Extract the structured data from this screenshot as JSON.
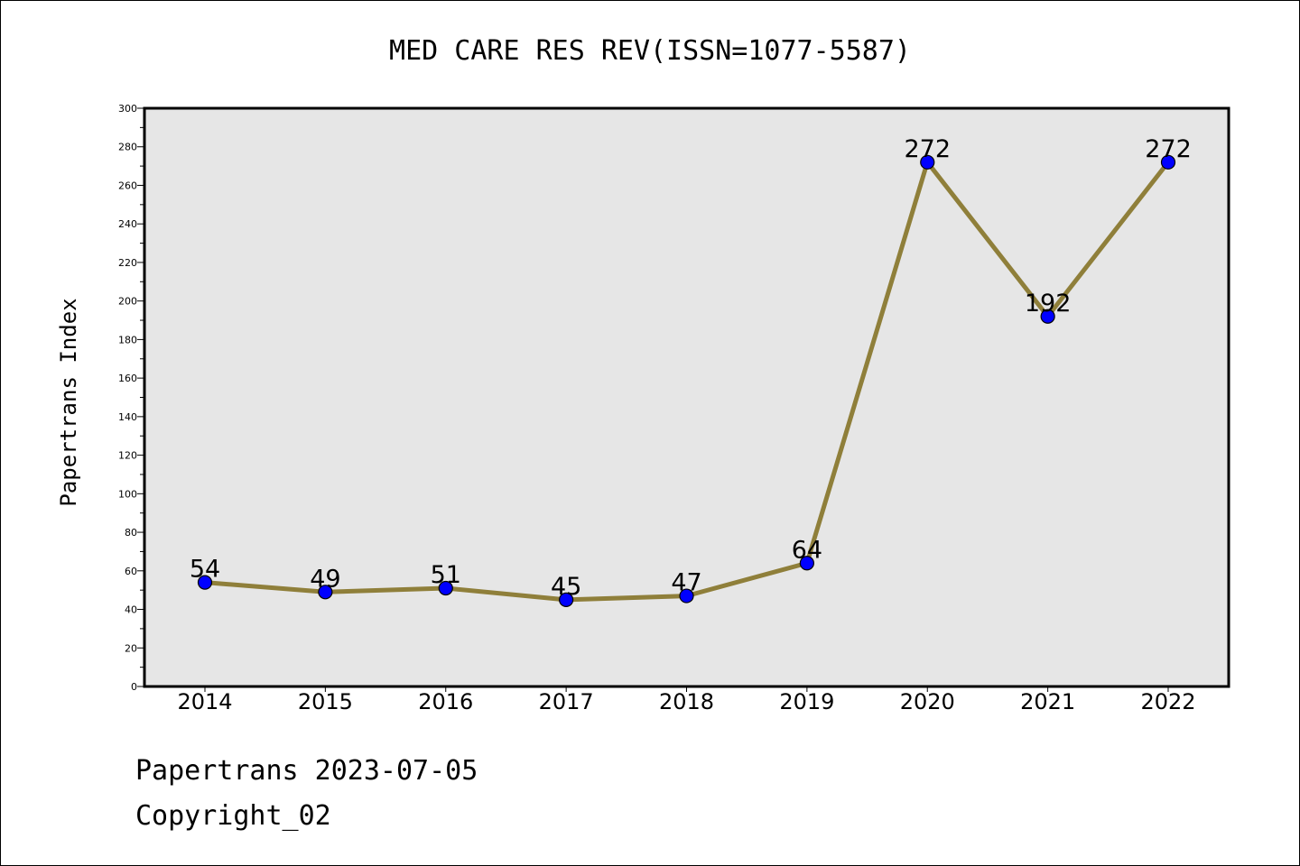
{
  "chart_data": {
    "type": "line",
    "title": "MED CARE RES REV(ISSN=1077-5587)",
    "ylabel": "Papertrans Index",
    "xlabel": "",
    "categories": [
      "2014",
      "2015",
      "2016",
      "2017",
      "2018",
      "2019",
      "2020",
      "2021",
      "2022"
    ],
    "series": [
      {
        "values": [
          54,
          49,
          51,
          45,
          47,
          64,
          272,
          192,
          272
        ]
      }
    ],
    "ylim": [
      0,
      300
    ],
    "yticks": [
      0,
      20,
      40,
      60,
      80,
      100,
      120,
      140,
      160,
      180,
      200,
      220,
      240,
      260,
      280,
      300
    ],
    "data_labels": true,
    "grid": false,
    "legend": "none",
    "colors": {
      "line": "#8f7f3a",
      "marker": "#0000ff",
      "plot_bg": "#e6e6e6"
    }
  },
  "footer": {
    "line1": "Papertrans 2023-07-05",
    "line2": "Copyright_02"
  }
}
